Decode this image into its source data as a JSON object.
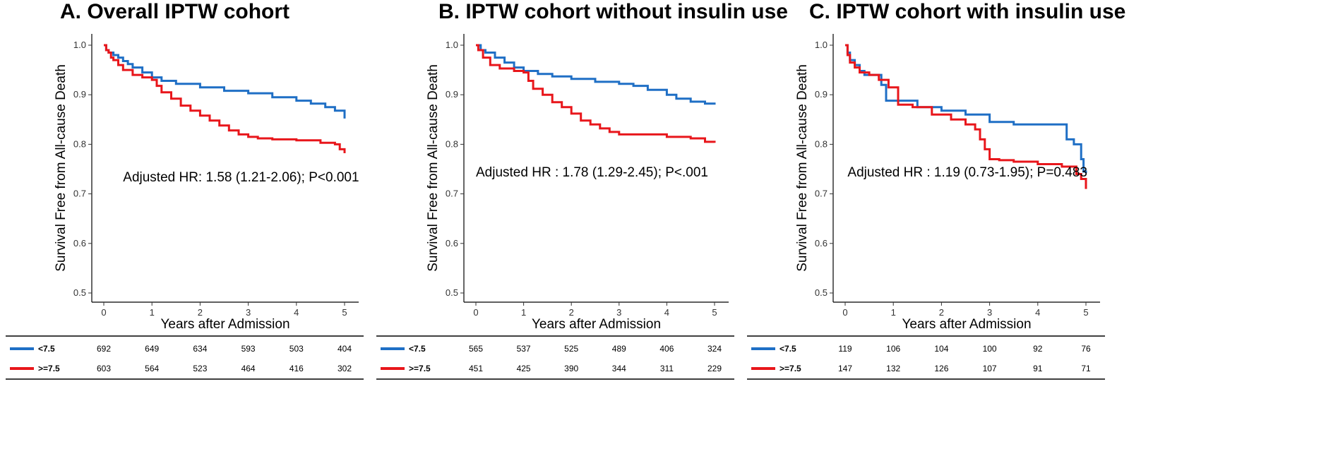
{
  "chart_data": [
    {
      "type": "line",
      "title": "A. Overall IPTW cohort",
      "xlabel": "Years after Admission",
      "ylabel": "Survival Free from All-cause Death",
      "xlim": [
        0,
        5
      ],
      "ylim": [
        0.5,
        1.0
      ],
      "xticks": [
        "0",
        "1",
        "2",
        "3",
        "4",
        "5"
      ],
      "yticks": [
        "0.5",
        "0.6",
        "0.7",
        "0.8",
        "0.9",
        "1.0"
      ],
      "grid": false,
      "annotation": "Adjusted HR: 1.58 (1.21-2.06);  P<0.001",
      "annotation_pos": {
        "x": 0.4,
        "y": 0.725
      },
      "series": [
        {
          "name": "<7.5",
          "color": "#1f6fc5",
          "x": [
            0,
            0.05,
            0.1,
            0.2,
            0.3,
            0.4,
            0.5,
            0.6,
            0.8,
            1.0,
            1.2,
            1.5,
            2.0,
            2.5,
            3.0,
            3.5,
            4.0,
            4.3,
            4.6,
            4.8,
            5.0
          ],
          "y": [
            1.0,
            0.99,
            0.985,
            0.98,
            0.975,
            0.968,
            0.962,
            0.955,
            0.945,
            0.935,
            0.928,
            0.922,
            0.915,
            0.908,
            0.903,
            0.895,
            0.888,
            0.882,
            0.875,
            0.868,
            0.852
          ]
        },
        {
          "name": ">=7.5",
          "color": "#e8161b",
          "x": [
            0,
            0.05,
            0.1,
            0.15,
            0.2,
            0.3,
            0.4,
            0.6,
            0.8,
            1.0,
            1.1,
            1.2,
            1.4,
            1.6,
            1.8,
            2.0,
            2.2,
            2.4,
            2.6,
            2.8,
            3.0,
            3.2,
            3.5,
            4.0,
            4.5,
            4.8,
            4.9,
            5.0
          ],
          "y": [
            1.0,
            0.99,
            0.985,
            0.975,
            0.97,
            0.96,
            0.95,
            0.94,
            0.935,
            0.93,
            0.918,
            0.905,
            0.892,
            0.878,
            0.868,
            0.858,
            0.848,
            0.838,
            0.828,
            0.82,
            0.815,
            0.812,
            0.81,
            0.808,
            0.803,
            0.8,
            0.79,
            0.782
          ]
        }
      ],
      "risk_table": {
        "rows": [
          {
            "label": "<7.5",
            "color": "#1f6fc5",
            "values": [
              "692",
              "649",
              "634",
              "593",
              "503",
              "404"
            ]
          },
          {
            "label": ">=7.5",
            "color": "#e8161b",
            "values": [
              "603",
              "564",
              "523",
              "464",
              "416",
              "302"
            ]
          }
        ]
      }
    },
    {
      "type": "line",
      "title": "B. IPTW cohort without insulin use",
      "xlabel": "Years after Admission",
      "ylabel": "Survival Free from All-cause Death",
      "xlim": [
        0,
        5
      ],
      "ylim": [
        0.5,
        1.0
      ],
      "xticks": [
        "0",
        "1",
        "2",
        "3",
        "4",
        "5"
      ],
      "yticks": [
        "0.5",
        "0.6",
        "0.7",
        "0.8",
        "0.9",
        "1.0"
      ],
      "grid": false,
      "annotation": "Adjusted HR : 1.78 (1.29-2.45);  P<.001",
      "annotation_pos": {
        "x": 0.0,
        "y": 0.735
      },
      "series": [
        {
          "name": "<7.5",
          "color": "#1f6fc5",
          "x": [
            0,
            0.1,
            0.2,
            0.4,
            0.6,
            0.8,
            1.0,
            1.3,
            1.6,
            2.0,
            2.5,
            3.0,
            3.3,
            3.6,
            4.0,
            4.2,
            4.5,
            4.8,
            5.0
          ],
          "y": [
            1.0,
            0.99,
            0.985,
            0.975,
            0.965,
            0.955,
            0.948,
            0.942,
            0.937,
            0.932,
            0.926,
            0.922,
            0.918,
            0.91,
            0.9,
            0.892,
            0.886,
            0.882,
            0.88
          ]
        },
        {
          "name": ">=7.5",
          "color": "#e8161b",
          "x": [
            0,
            0.05,
            0.15,
            0.3,
            0.5,
            0.8,
            1.0,
            1.1,
            1.2,
            1.4,
            1.6,
            1.8,
            2.0,
            2.2,
            2.4,
            2.6,
            2.8,
            3.0,
            3.5,
            4.0,
            4.5,
            4.8,
            5.0
          ],
          "y": [
            1.0,
            0.99,
            0.975,
            0.96,
            0.953,
            0.948,
            0.945,
            0.928,
            0.912,
            0.9,
            0.885,
            0.875,
            0.862,
            0.848,
            0.84,
            0.832,
            0.825,
            0.82,
            0.82,
            0.815,
            0.812,
            0.805,
            0.803
          ]
        }
      ],
      "risk_table": {
        "rows": [
          {
            "label": "<7.5",
            "color": "#1f6fc5",
            "values": [
              "565",
              "537",
              "525",
              "489",
              "406",
              "324"
            ]
          },
          {
            "label": ">=7.5",
            "color": "#e8161b",
            "values": [
              "451",
              "425",
              "390",
              "344",
              "311",
              "229"
            ]
          }
        ]
      }
    },
    {
      "type": "line",
      "title": "C. IPTW cohort with insulin use",
      "xlabel": "Years after Admission",
      "ylabel": "Survival Free from All-cause Death",
      "xlim": [
        0,
        5
      ],
      "ylim": [
        0.5,
        1.0
      ],
      "xticks": [
        "0",
        "1",
        "2",
        "3",
        "4",
        "5"
      ],
      "yticks": [
        "0.5",
        "0.6",
        "0.7",
        "0.8",
        "0.9",
        "1.0"
      ],
      "grid": false,
      "annotation": "Adjusted HR : 1.19 (0.73-1.95);  P=0.483",
      "annotation_pos": {
        "x": 0.05,
        "y": 0.735
      },
      "series": [
        {
          "name": "<7.5",
          "color": "#1f6fc5",
          "x": [
            0,
            0.05,
            0.1,
            0.2,
            0.3,
            0.4,
            0.6,
            0.75,
            0.85,
            1.5,
            2.0,
            2.5,
            3.0,
            3.5,
            4.0,
            4.5,
            4.6,
            4.75,
            4.9,
            4.95,
            5.0
          ],
          "y": [
            1.0,
            0.985,
            0.97,
            0.96,
            0.948,
            0.94,
            0.94,
            0.92,
            0.888,
            0.875,
            0.868,
            0.86,
            0.845,
            0.84,
            0.84,
            0.84,
            0.81,
            0.8,
            0.77,
            0.745,
            0.742
          ]
        },
        {
          "name": ">=7.5",
          "color": "#e8161b",
          "x": [
            0,
            0.05,
            0.1,
            0.2,
            0.3,
            0.5,
            0.7,
            0.9,
            1.1,
            1.4,
            1.8,
            2.2,
            2.5,
            2.7,
            2.8,
            2.9,
            3.0,
            3.2,
            3.5,
            4.0,
            4.5,
            4.8,
            4.9,
            5.0
          ],
          "y": [
            1.0,
            0.98,
            0.965,
            0.955,
            0.945,
            0.94,
            0.93,
            0.915,
            0.88,
            0.875,
            0.86,
            0.85,
            0.84,
            0.83,
            0.81,
            0.79,
            0.77,
            0.768,
            0.765,
            0.76,
            0.755,
            0.74,
            0.73,
            0.71
          ]
        }
      ],
      "risk_table": {
        "rows": [
          {
            "label": "<7.5",
            "color": "#1f6fc5",
            "values": [
              "119",
              "106",
              "104",
              "100",
              "92",
              "76"
            ]
          },
          {
            "label": ">=7.5",
            "color": "#e8161b",
            "values": [
              "147",
              "132",
              "126",
              "107",
              "91",
              "71"
            ]
          }
        ]
      }
    }
  ]
}
